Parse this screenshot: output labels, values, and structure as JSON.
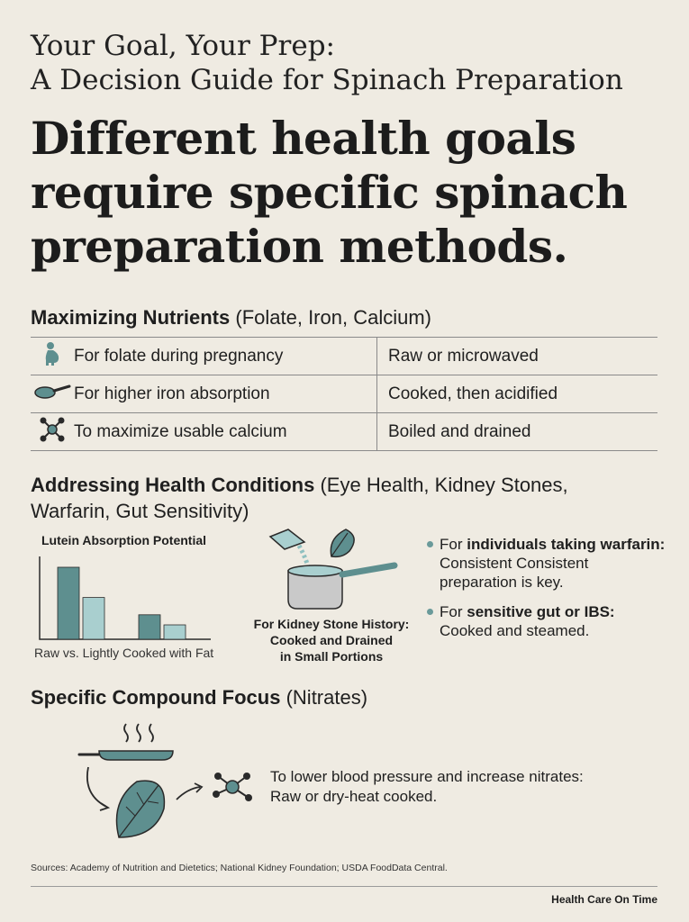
{
  "header": {
    "subtitle_line1": "Your Goal, Your Prep:",
    "subtitle_line2": "A Decision Guide for Spinach Preparation",
    "headline_line1": "Different health goals",
    "headline_line2": "require specific spinach",
    "headline_line3": "preparation methods."
  },
  "nutrients": {
    "title": "Maximizing Nutrients",
    "paren": "(Folate, Iron, Calcium)",
    "rows": [
      {
        "icon": "pregnant-person-icon",
        "goal": "For folate during pregnancy",
        "method": "Raw or microwaved"
      },
      {
        "icon": "frying-pan-icon",
        "goal": "For higher iron absorption",
        "method": "Cooked, then acidified"
      },
      {
        "icon": "molecule-icon",
        "goal": "To maximize usable calcium",
        "method": "Boiled and drained"
      }
    ]
  },
  "conditions": {
    "title": "Addressing Health Conditions",
    "paren_line1": "(Eye Health, Kidney Stones,",
    "paren_line2": "Warfarin, Gut Sensitivity)",
    "chart_title": "Lutein Absorption Potential",
    "chart_caption": "Raw vs. Lightly Cooked with Fat",
    "kidney_line1": "For Kidney Stone History:",
    "kidney_line2": "Cooked and Drained",
    "kidney_line3": "in Small Portions",
    "bullets": [
      {
        "prefix": "For ",
        "bold": "individuals taking warfarin:",
        "rest": " Consistent Consistent preparation is key."
      },
      {
        "prefix": "For ",
        "bold": "sensitive gut or IBS:",
        "rest": " Cooked and steamed."
      }
    ]
  },
  "chart_data": {
    "type": "bar",
    "title": "Lutein Absorption Potential",
    "xlabel": "Raw vs. Lightly Cooked with Fat",
    "ylabel": "",
    "groups": [
      {
        "values": [
          1.0,
          0.58
        ]
      },
      {
        "values": [
          0.34,
          0.2
        ]
      }
    ],
    "colors": [
      "#5e8f8f",
      "#a9cfcf"
    ]
  },
  "compound": {
    "title": "Specific Compound Focus",
    "paren": "(Nitrates)",
    "text_line1": "To lower blood pressure and increase nitrates:",
    "text_line2": "Raw or dry-heat cooked."
  },
  "footer": {
    "sources": "Sources: Academy of Nutrition and Dietetics; National Kidney Foundation; USDA FoodData Central.",
    "brand": "Health Care On Time"
  },
  "colors": {
    "background": "#efebe2",
    "teal_dark": "#5e8f8f",
    "teal_light": "#a9cfcf",
    "text": "#1f1f1f"
  }
}
